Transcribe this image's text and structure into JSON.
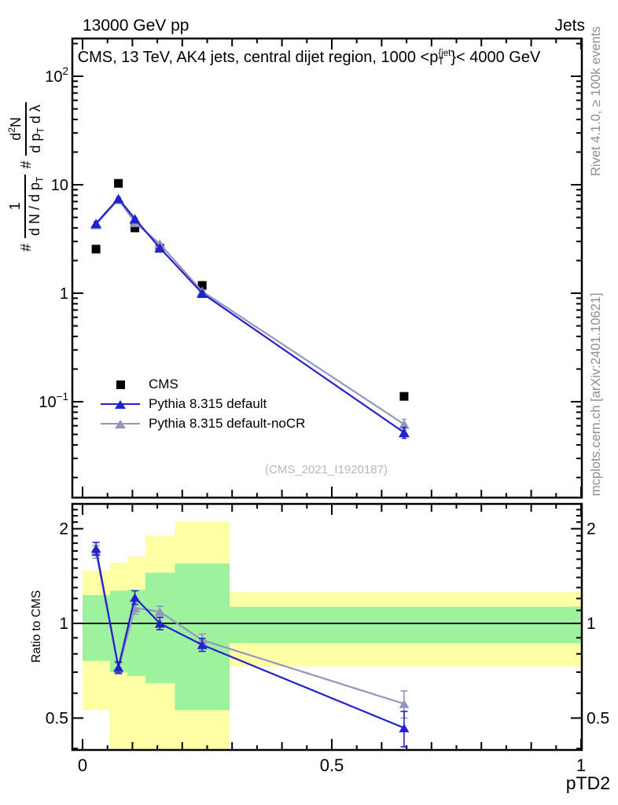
{
  "header": {
    "left": "13000 GeV pp",
    "right": "Jets"
  },
  "title_parts": {
    "prefix": "CMS, 13 TeV, AK4 jets, central dijet region, 1000 <p",
    "sup": "{jet",
    "sub": "T",
    "suffix": "}< 4000 GeV"
  },
  "y_label_main": {
    "parts": [
      {
        "kind": "text",
        "text": "#"
      },
      {
        "kind": "frac",
        "num": [
          {
            "t": "1"
          }
        ],
        "den": [
          {
            "t": "d N / d p"
          },
          {
            "t": "T",
            "style": "sub"
          }
        ]
      },
      {
        "kind": "text",
        "text": "#"
      },
      {
        "kind": "frac",
        "num": [
          {
            "t": "d"
          },
          {
            "t": "2",
            "style": "sup"
          },
          {
            "t": "N"
          }
        ],
        "den": [
          {
            "t": "d p"
          },
          {
            "t": "T",
            "style": "sub"
          },
          {
            "t": " d λ"
          }
        ]
      }
    ]
  },
  "side_texts": {
    "top_right": "Rivet 4.1.0, ≥ 100k events",
    "bottom_right": "mcplots.cern.ch [arXiv:2401.10621]"
  },
  "watermark": "(CMS_2021_I1920187)",
  "legend": [
    {
      "label": "CMS",
      "marker": "square",
      "color": "#000000"
    },
    {
      "label": "Pythia 8.315 default",
      "marker": "triangle-line",
      "color": "#2222cc"
    },
    {
      "label": "Pythia 8.315 default-noCR",
      "marker": "triangle-line",
      "color": "#9595c0"
    }
  ],
  "colors": {
    "cms": "#000000",
    "default_line": "#2222cc",
    "nocr_line": "#9595c0",
    "band_yellow": "#ffffa6",
    "band_green": "#9ef29e",
    "watermark": "#b8b8b8",
    "side_text": "#8f8f8f"
  },
  "chart_data": {
    "type": "line",
    "x_label": "pTD2",
    "x_ticks_labeled": [
      {
        "v": 0,
        "label": "0"
      },
      {
        "v": 0.5,
        "label": "0.5"
      },
      {
        "v": 1,
        "label": "1"
      }
    ],
    "x": [
      0.027,
      0.072,
      0.105,
      0.155,
      0.24,
      0.645
    ],
    "main": {
      "y_scale": "log",
      "y_range": [
        0.0131,
        223
      ],
      "y_ticks": [
        {
          "v": 100,
          "base": "10",
          "exp": "2"
        },
        {
          "v": 10,
          "base": "10",
          "exp": ""
        },
        {
          "v": 1,
          "base": "1",
          "exp": ""
        },
        {
          "v": 0.1,
          "base": "10",
          "exp": "−1"
        }
      ],
      "series": [
        {
          "name": "CMS",
          "marker": "square",
          "color": "#000000",
          "line": false,
          "y": [
            2.55,
            10.3,
            4.0,
            2.6,
            1.18,
            0.112
          ],
          "yerr": [
            0,
            0,
            0,
            0,
            0,
            0
          ]
        },
        {
          "name": "Pythia 8.315 default-noCR",
          "marker": "triangle",
          "color": "#9595c0",
          "line": true,
          "y": [
            4.3,
            7.35,
            4.5,
            2.85,
            1.04,
            0.062
          ],
          "yerr": [
            0.15,
            0.2,
            0.12,
            0.06,
            0.03,
            0.007
          ]
        },
        {
          "name": "Pythia 8.315 default",
          "marker": "triangle",
          "color": "#2222cc",
          "line": true,
          "y": [
            4.4,
            7.45,
            4.85,
            2.62,
            1.0,
            0.052
          ],
          "yerr": [
            0.15,
            0.2,
            0.12,
            0.06,
            0.03,
            0.006
          ]
        }
      ]
    },
    "ratio": {
      "y_scale": "log",
      "y_range": [
        0.395,
        2.4
      ],
      "y_label": "Ratio to CMS",
      "y_ticks_labeled": [
        {
          "v": 2,
          "label": "2"
        },
        {
          "v": 1,
          "label": "1"
        },
        {
          "v": 0.5,
          "label": "0.5"
        }
      ],
      "reference_line": 1.0,
      "bands": {
        "edges": [
          0,
          0.055,
          0.09,
          0.126,
          0.185,
          0.295,
          1.0
        ],
        "yellow": [
          [
            0.53,
            1.47
          ],
          [
            0.4,
            1.56
          ],
          [
            0.38,
            1.63
          ],
          [
            0.38,
            1.9
          ],
          [
            0.38,
            2.11
          ],
          [
            0.73,
            1.26
          ]
        ],
        "green": [
          [
            0.76,
            1.23
          ],
          [
            0.7,
            1.27
          ],
          [
            0.68,
            1.28
          ],
          [
            0.645,
            1.45
          ],
          [
            0.53,
            1.55
          ],
          [
            0.865,
            1.13
          ]
        ]
      },
      "series": [
        {
          "name": "Pythia 8.315 default-noCR",
          "color": "#9595c0",
          "y": [
            1.69,
            0.72,
            1.12,
            1.09,
            0.885,
            0.555
          ],
          "yerr": [
            0.08,
            0.03,
            0.05,
            0.045,
            0.04,
            0.055
          ]
        },
        {
          "name": "Pythia 8.315 default",
          "color": "#2222cc",
          "y": [
            1.73,
            0.725,
            1.21,
            1.0,
            0.855,
            0.465
          ],
          "yerr": [
            0.08,
            0.03,
            0.06,
            0.045,
            0.04,
            0.06
          ]
        }
      ]
    }
  }
}
